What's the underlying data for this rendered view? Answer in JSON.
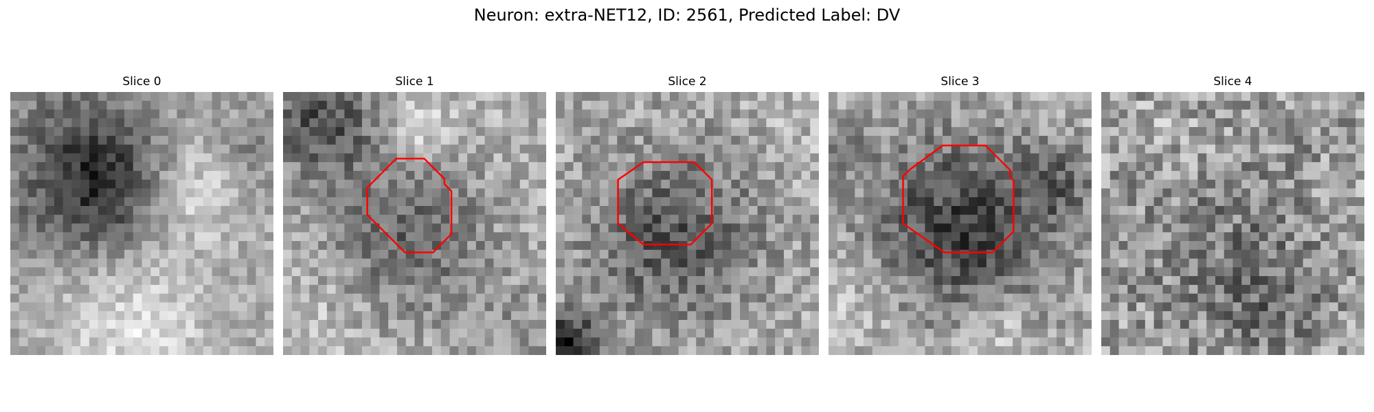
{
  "figure": {
    "title": "Neuron: extra-NET12, ID: 2561, Predicted Label: DV"
  },
  "colors": {
    "contour": "#ff0000",
    "background": "#ffffff",
    "text": "#000000",
    "image_colormap": "gray"
  },
  "panels": [
    {
      "title": "Slice 0",
      "has_contour": false
    },
    {
      "title": "Slice 1",
      "has_contour": true
    },
    {
      "title": "Slice 2",
      "has_contour": true
    },
    {
      "title": "Slice 3",
      "has_contour": true
    },
    {
      "title": "Slice 4",
      "has_contour": false
    }
  ]
}
